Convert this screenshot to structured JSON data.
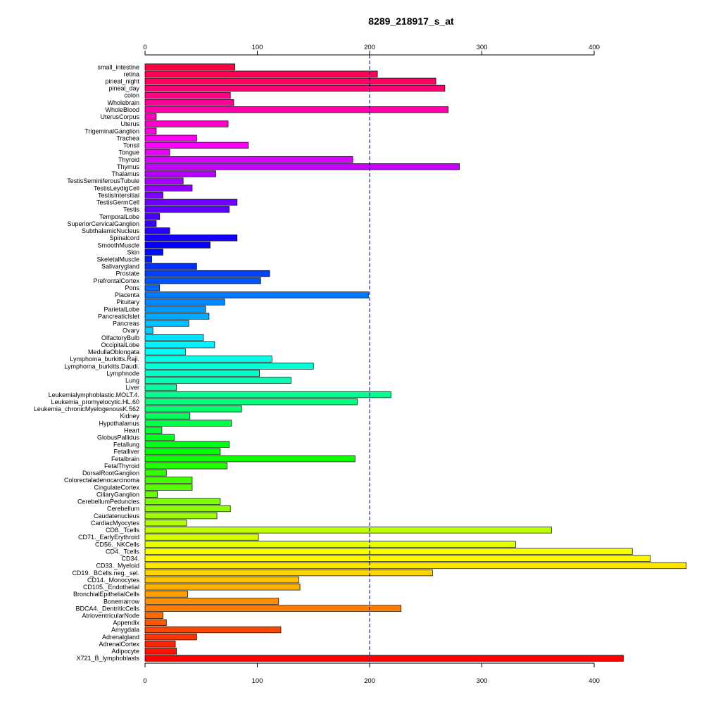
{
  "chart_data": {
    "type": "bar",
    "orientation": "horizontal",
    "title": "8289_218917_s_at",
    "xlim": [
      0,
      480
    ],
    "xticks": [
      0,
      100,
      200,
      300,
      400
    ],
    "reference_line": 200,
    "categories": [
      "small_intestine",
      "retina",
      "pineal_night",
      "pineal_day",
      "colon",
      "Wholebrain",
      "WholeBlood",
      "UterusCorpus",
      "Uterus",
      "TrigeminalGanglion",
      "Trachea",
      "Tonsil",
      "Tongue",
      "Thyroid",
      "Thymus",
      "Thalamus",
      "TestisSeminiferousTubule",
      "TestisLeydigCell",
      "TestisIntersitial",
      "TestisGermCell",
      "Testis",
      "TemporalLobe",
      "SuperiorCervicalGanglion",
      "SubthalamicNucleus",
      "Spinalcord",
      "SmoothMuscle",
      "Skin",
      "SkeletalMuscle",
      "Salivarygland",
      "Prostate",
      "PrefrontalCortex",
      "Pons",
      "Placenta",
      "Pituitary",
      "ParietalLobe",
      "PancreaticIslet",
      "Pancreas",
      "Ovary",
      "OlfactoryBulb",
      "OccipitalLobe",
      "MedullaOblongata",
      "Lymphoma_burkitts.Raji.",
      "Lymphoma_burkitts.Daudi.",
      "Lymphnode",
      "Lung",
      "Liver",
      "Leukemialymphoblastic.MOLT.4.",
      "Leukemia_promyelocytic.HL.60",
      "Leukemia_chronicMyelogenousK.562",
      "Kidney",
      "Hypothalamus",
      "Heart",
      "GlobusPallidus",
      "Fetallung",
      "Fetalliver",
      "Fetalbrain",
      "FetalThyroid",
      "DorsalRootGanglion",
      "Colorectaladenocarcinoma",
      "CingulateCortex",
      "CiliaryGanglion",
      "CerebellumPeduncles",
      "Cerebellum",
      "Caudatenucleus",
      "CardiacMyocytes",
      "CD8._Tcells",
      "CD71._EarlyErythroid",
      "CD56._NKCells",
      "CD4._Tcells",
      "CD34.",
      "CD33._Myeloid",
      "CD19._BCells.neg._sel.",
      "CD14._Monocytes",
      "CD105._Endothelial",
      "BronchialEpithelialCells",
      "Bonemarrow",
      "BDCA4._DentriticCells",
      "AtrioventricularNode",
      "Appendix",
      "Amygdala",
      "Adrenalgland",
      "AdrenalCortex",
      "Adipocyte",
      "X721_B_lymphoblasts"
    ],
    "values": [
      80,
      207,
      259,
      267,
      76,
      79,
      270,
      10,
      74,
      10,
      46,
      92,
      22,
      185,
      280,
      63,
      34,
      42,
      16,
      82,
      75,
      13,
      10,
      22,
      82,
      58,
      16,
      6,
      46,
      111,
      103,
      13,
      199,
      71,
      54,
      57,
      39,
      7,
      52,
      62,
      36,
      113,
      150,
      102,
      130,
      28,
      219,
      189,
      86,
      40,
      77,
      15,
      26,
      75,
      67,
      187,
      73,
      19,
      42,
      42,
      11,
      67,
      76,
      64,
      37,
      362,
      101,
      330,
      434,
      450,
      482,
      256,
      137,
      138,
      38,
      119,
      228,
      16,
      19,
      121,
      46,
      27,
      28,
      426
    ]
  }
}
